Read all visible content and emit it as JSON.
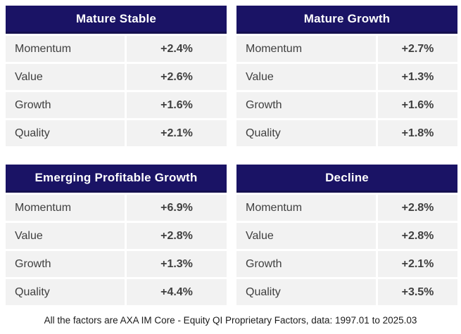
{
  "chart_data": [
    {
      "type": "table",
      "title": "Mature Stable",
      "rows": [
        [
          "Momentum",
          "+2.4%"
        ],
        [
          "Value",
          "+2.6%"
        ],
        [
          "Growth",
          "+1.6%"
        ],
        [
          "Quality",
          "+2.1%"
        ]
      ]
    },
    {
      "type": "table",
      "title": "Mature Growth",
      "rows": [
        [
          "Momentum",
          "+2.7%"
        ],
        [
          "Value",
          "+1.3%"
        ],
        [
          "Growth",
          "+1.6%"
        ],
        [
          "Quality",
          "+1.8%"
        ]
      ]
    },
    {
      "type": "table",
      "title": "Emerging Profitable Growth",
      "rows": [
        [
          "Momentum",
          "+6.9%"
        ],
        [
          "Value",
          "+2.8%"
        ],
        [
          "Growth",
          "+1.3%"
        ],
        [
          "Quality",
          "+4.4%"
        ]
      ]
    },
    {
      "type": "table",
      "title": "Decline",
      "rows": [
        [
          "Momentum",
          "+2.8%"
        ],
        [
          "Value",
          "+2.8%"
        ],
        [
          "Growth",
          "+2.1%"
        ],
        [
          "Quality",
          "+3.5%"
        ]
      ]
    }
  ],
  "footnote": "All the factors are AXA IM Core - Equity QI Proprietary Factors, data: 1997.01 to 2025.03",
  "colors": {
    "header_bg": "#1a1365",
    "header_border": "#15104f",
    "header_text": "#ffffff",
    "row_bg": "#f2f2f2",
    "row_text": "#3f3f3f",
    "background": "#ffffff"
  }
}
